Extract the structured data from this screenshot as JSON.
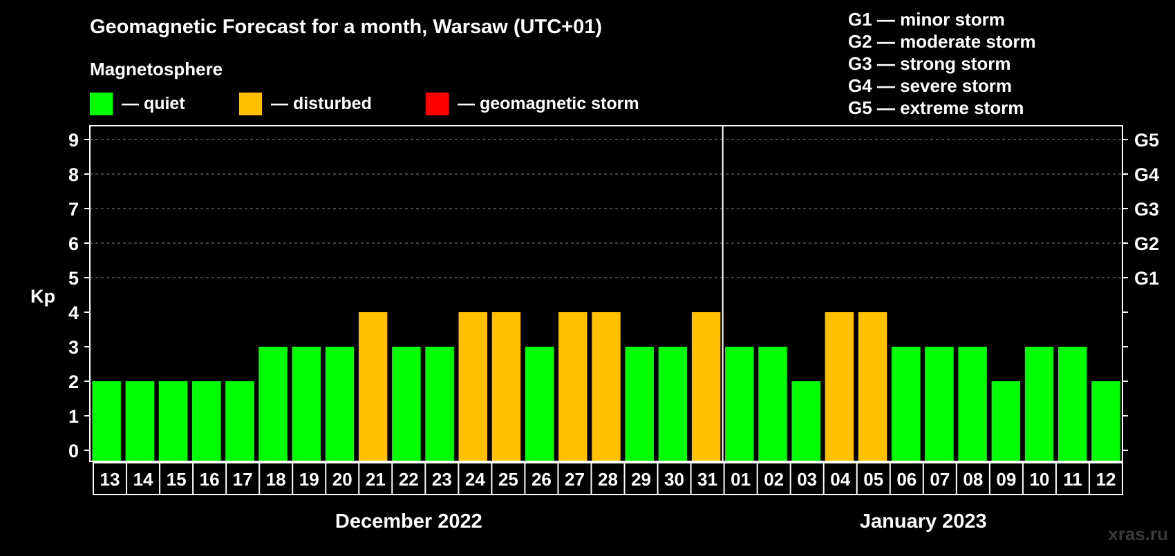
{
  "chart_data": {
    "type": "bar",
    "title": "Geomagnetic Forecast for a month, Warsaw (UTC+01)",
    "subtitle": "Magnetosphere",
    "ylabel": "Kp",
    "ylim": [
      0,
      9
    ],
    "yticks": [
      "0",
      "1",
      "2",
      "3",
      "4",
      "5",
      "6",
      "7",
      "8",
      "9"
    ],
    "right_ticks": [
      {
        "kp": 5,
        "label": "G1"
      },
      {
        "kp": 6,
        "label": "G2"
      },
      {
        "kp": 7,
        "label": "G3"
      },
      {
        "kp": 8,
        "label": "G4"
      },
      {
        "kp": 9,
        "label": "G5"
      }
    ],
    "legend": [
      {
        "label": "— quiet",
        "color": "#00ff00"
      },
      {
        "label": "— disturbed",
        "color": "#ffc000"
      },
      {
        "label": "— geomagnetic storm",
        "color": "#ff0000"
      }
    ],
    "storm_legend": [
      "G1 — minor storm",
      "G2 — moderate storm",
      "G3 — strong storm",
      "G4 — severe storm",
      "G5 — extreme storm"
    ],
    "categories": [
      "13",
      "14",
      "15",
      "16",
      "17",
      "18",
      "19",
      "20",
      "21",
      "22",
      "23",
      "24",
      "25",
      "26",
      "27",
      "28",
      "29",
      "30",
      "31",
      "01",
      "02",
      "03",
      "04",
      "05",
      "06",
      "07",
      "08",
      "09",
      "10",
      "11",
      "12"
    ],
    "values": [
      2,
      2,
      2,
      2,
      2,
      3,
      3,
      3,
      4,
      3,
      3,
      4,
      4,
      3,
      4,
      4,
      3,
      3,
      4,
      3,
      3,
      2,
      4,
      4,
      3,
      3,
      3,
      2,
      3,
      3,
      2
    ],
    "months": [
      {
        "label": "December 2022",
        "start": 0,
        "end": 18
      },
      {
        "label": "January 2023",
        "start": 19,
        "end": 30
      }
    ],
    "colors": {
      "quiet": "#00ff00",
      "disturbed": "#ffc000",
      "storm": "#ff0000"
    },
    "thresholds": {
      "disturbed": 4,
      "storm": 5
    }
  },
  "watermark": "xras.ru"
}
